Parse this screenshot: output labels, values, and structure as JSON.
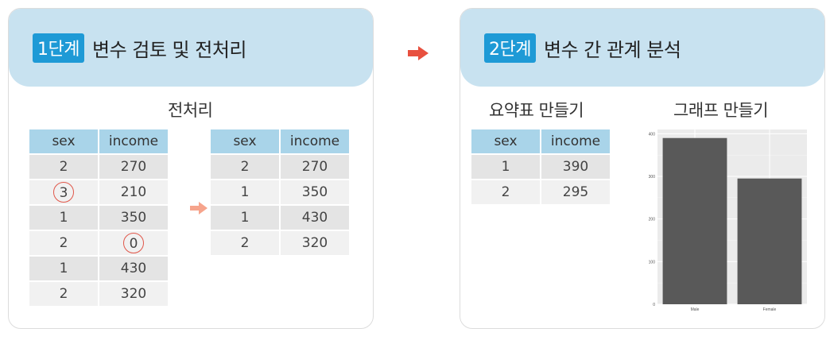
{
  "step1": {
    "badge": "1단계",
    "title": "변수 검토 및 전처리",
    "section": "전처리",
    "before_table": {
      "headers": [
        "sex",
        "income"
      ],
      "rows": [
        [
          "2",
          "270"
        ],
        [
          "3",
          "210"
        ],
        [
          "1",
          "350"
        ],
        [
          "2",
          "0"
        ],
        [
          "1",
          "430"
        ],
        [
          "2",
          "320"
        ]
      ]
    },
    "after_table": {
      "headers": [
        "sex",
        "income"
      ],
      "rows": [
        [
          "2",
          "270"
        ],
        [
          "1",
          "350"
        ],
        [
          "1",
          "430"
        ],
        [
          "2",
          "320"
        ]
      ]
    }
  },
  "step2": {
    "badge": "2단계",
    "title": "변수 간 관계 분석",
    "summary_label": "요약표 만들기",
    "graph_label": "그래프 만들기",
    "summary_table": {
      "headers": [
        "sex",
        "income"
      ],
      "rows": [
        [
          "1",
          "390"
        ],
        [
          "2",
          "295"
        ]
      ]
    }
  },
  "colors": {
    "header_bg": "#c8e2f0",
    "badge_bg": "#1e9ad6",
    "table_header_bg": "#a9d4e9",
    "row_dark": "#e4e4e4",
    "row_light": "#f1f1f1",
    "circle": "#e0574a",
    "big_arrow": "#e8503f",
    "small_arrow": "#f6a48c",
    "bar_fill": "#595959",
    "plot_bg": "#ebebeb"
  },
  "chart_data": {
    "type": "bar",
    "categories": [
      "Male",
      "Female"
    ],
    "values": [
      390,
      295
    ],
    "ylim": [
      0,
      410
    ],
    "yticks": [
      "0",
      "100",
      "200",
      "300",
      "400"
    ],
    "grid": true
  }
}
